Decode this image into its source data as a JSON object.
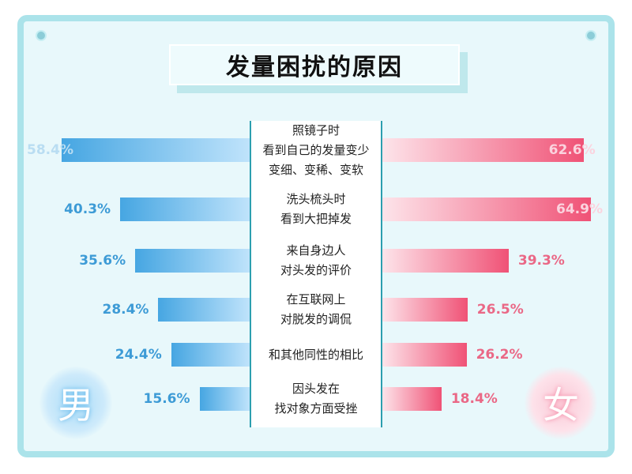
{
  "title": "发量困扰的原因",
  "labels": {
    "male": "男",
    "female": "女"
  },
  "colors": {
    "male": "#46a6e2",
    "female": "#f05276",
    "frame": "#abe3ea",
    "accent": "#2c9faf"
  },
  "chart_data": {
    "type": "bar",
    "title": "发量困扰的原因",
    "categories": [
      "照镜子时\n看到自己的发量变少\n变细、变稀、变软",
      "洗头梳头时\n看到大把掉发",
      "来自身边人\n对头发的评价",
      "在互联网上\n对脱发的调侃",
      "和其他同性的相比",
      "因头发在\n找对象方面受挫"
    ],
    "series": [
      {
        "name": "男",
        "values": [
          58.4,
          40.3,
          35.6,
          28.4,
          24.4,
          15.6
        ],
        "labels": [
          "58.4%",
          "40.3%",
          "35.6%",
          "28.4%",
          "24.4%",
          "15.6%"
        ]
      },
      {
        "name": "女",
        "values": [
          62.6,
          64.9,
          39.3,
          26.5,
          26.2,
          18.4
        ],
        "labels": [
          "62.6%",
          "64.9%",
          "39.3%",
          "26.5%",
          "26.2%",
          "18.4%"
        ]
      }
    ],
    "orientation": "horizontal-diverging",
    "unit": "%"
  }
}
